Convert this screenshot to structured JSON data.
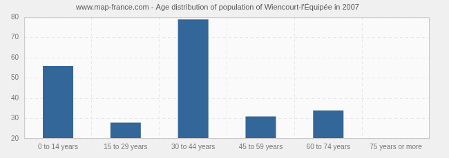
{
  "chart_data": {
    "type": "bar",
    "title": "www.map-france.com - Age distribution of population of Wiencourt-l'Équipée in 2007",
    "categories": [
      "0 to 14 years",
      "15 to 29 years",
      "30 to 44 years",
      "45 to 59 years",
      "60 to 74 years",
      "75 years or more"
    ],
    "values": [
      56,
      28,
      79,
      31,
      34,
      20
    ],
    "color": "#336699",
    "ylim": [
      20,
      80
    ],
    "yticks": [
      20,
      30,
      40,
      50,
      60,
      70,
      80
    ],
    "grid": true
  }
}
